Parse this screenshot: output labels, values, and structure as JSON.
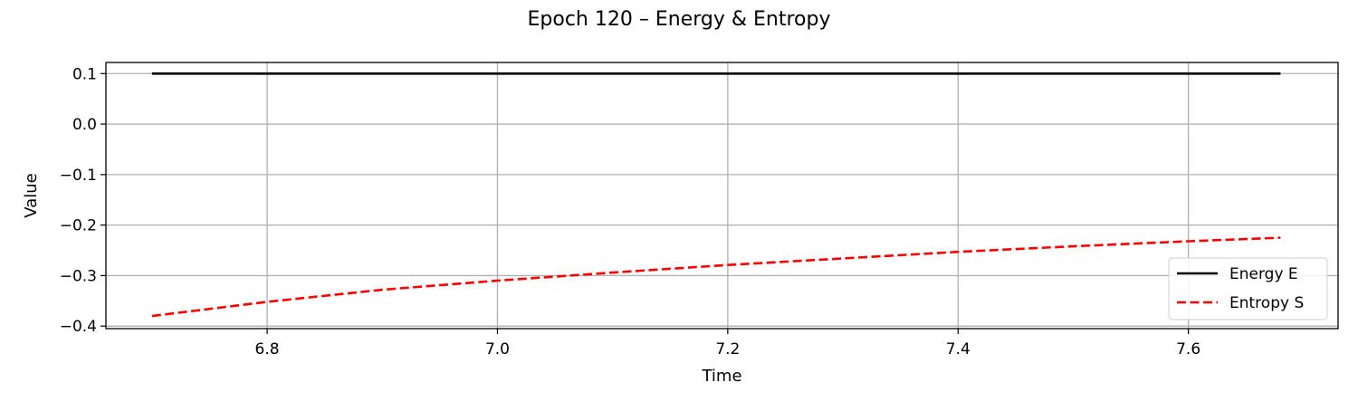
{
  "chart_data": {
    "type": "line",
    "title": "Epoch 120 – Energy & Entropy",
    "xlabel": "Time",
    "ylabel": "Value",
    "xlim": [
      6.66,
      7.73
    ],
    "ylim": [
      -0.405,
      0.122
    ],
    "xticks": [
      6.8,
      7.0,
      7.2,
      7.4,
      7.6
    ],
    "xtick_labels": [
      "6.8",
      "7.0",
      "7.2",
      "7.4",
      "7.6"
    ],
    "yticks": [
      -0.4,
      -0.3,
      -0.2,
      -0.1,
      0.0,
      0.1
    ],
    "ytick_labels": [
      "−0.4",
      "−0.3",
      "−0.2",
      "−0.1",
      "0.0",
      "0.1"
    ],
    "grid": true,
    "legend_position": "lower-right",
    "series": [
      {
        "name": "Energy E",
        "color": "#000000",
        "dash": "solid",
        "x": [
          6.7,
          6.8,
          6.9,
          7.0,
          7.1,
          7.2,
          7.3,
          7.4,
          7.5,
          7.6,
          7.68
        ],
        "y": [
          0.1,
          0.1,
          0.1,
          0.1,
          0.1,
          0.1,
          0.1,
          0.1,
          0.1,
          0.1,
          0.1
        ]
      },
      {
        "name": "Entropy S",
        "color": "#ff0000",
        "dash": "dashed",
        "x": [
          6.7,
          6.8,
          6.9,
          7.0,
          7.1,
          7.2,
          7.3,
          7.4,
          7.5,
          7.6,
          7.68
        ],
        "y": [
          -0.38,
          -0.352,
          -0.328,
          -0.31,
          -0.294,
          -0.279,
          -0.266,
          -0.253,
          -0.242,
          -0.232,
          -0.225
        ]
      }
    ]
  }
}
